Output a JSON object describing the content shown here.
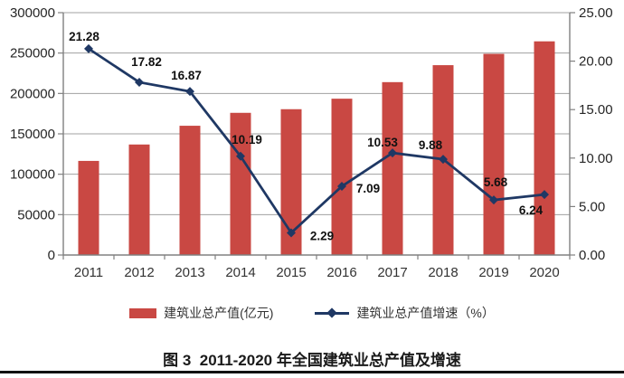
{
  "chart_data": {
    "type": "bar+line",
    "title": "图 3  2011-2020 年全国建筑业总产值及增速",
    "categories": [
      "2011",
      "2012",
      "2013",
      "2014",
      "2015",
      "2016",
      "2017",
      "2018",
      "2019",
      "2020"
    ],
    "series": [
      {
        "name": "建筑业总产值(亿元)",
        "type": "bar",
        "axis": "left",
        "color": "#c94843",
        "values": [
          116500,
          136800,
          160000,
          176000,
          180500,
          193500,
          214000,
          235000,
          249000,
          264500
        ]
      },
      {
        "name": "建筑业总产值增速（%）",
        "type": "line",
        "axis": "right",
        "color": "#1f3864",
        "values": [
          21.28,
          17.82,
          16.87,
          10.19,
          2.29,
          7.09,
          10.53,
          9.88,
          5.68,
          6.24
        ],
        "point_labels": [
          "21.28",
          "17.82",
          "16.87",
          "10.19",
          "2.29",
          "7.09",
          "10.53",
          "9.88",
          "5.68",
          "6.24"
        ]
      }
    ],
    "left_axis": {
      "min": 0,
      "max": 300000,
      "step": 50000,
      "tick_labels": [
        "0",
        "50000",
        "100000",
        "150000",
        "200000",
        "250000",
        "300000"
      ]
    },
    "right_axis": {
      "min": 0,
      "max": 25,
      "step": 5,
      "tick_labels": [
        "0.00",
        "5.00",
        "10.00",
        "15.00",
        "20.00",
        "25.00"
      ]
    },
    "grid": true,
    "grid_color": "#a0a0a0",
    "axis_color": "#808080",
    "legend_position": "bottom"
  },
  "legend": {
    "items": [
      {
        "label": "建筑业总产值(亿元)"
      },
      {
        "label": "建筑业总产值增速（%）"
      }
    ]
  },
  "caption": "图 3  2011-2020 年全国建筑业总产值及增速"
}
